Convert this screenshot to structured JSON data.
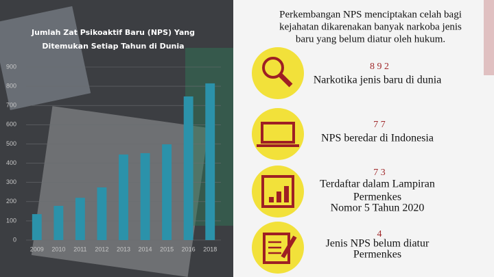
{
  "chart_data": {
    "type": "bar",
    "title": [
      "Jumlah Zat Psikoaktif Baru (NPS) Yang",
      "Ditemukan Setiap Tahun di Dunia"
    ],
    "categories": [
      "2009",
      "2010",
      "2011",
      "2012",
      "2013",
      "2014",
      "2015",
      "2016",
      "2018"
    ],
    "values": [
      135,
      178,
      220,
      274,
      445,
      452,
      498,
      747,
      815
    ],
    "color": "#2b92aa",
    "ylim": [
      0,
      900
    ],
    "yticks": [
      0,
      100,
      200,
      300,
      400,
      500,
      600,
      700,
      800,
      900
    ],
    "grid": true
  },
  "panel": {
    "heading": [
      "Perkembangan NPS menciptakan celah bagi",
      "kejahatan dikarenakan banyak narkoba jenis",
      "baru yang belum diatur oleh hukum."
    ],
    "items": [
      {
        "number": "8 9 2",
        "text": [
          "Narkotika jenis baru di dunia"
        ]
      },
      {
        "number": "7 7",
        "text": [
          "NPS beredar di Indonesia"
        ]
      },
      {
        "number": "7 3",
        "text": [
          "Terdaftar dalam Lampiran",
          "Permenkes",
          "Nomor 5 Tahun 2020"
        ]
      },
      {
        "number": "4",
        "text": [
          "Jenis NPS belum diatur",
          "Permenkes"
        ]
      }
    ]
  }
}
